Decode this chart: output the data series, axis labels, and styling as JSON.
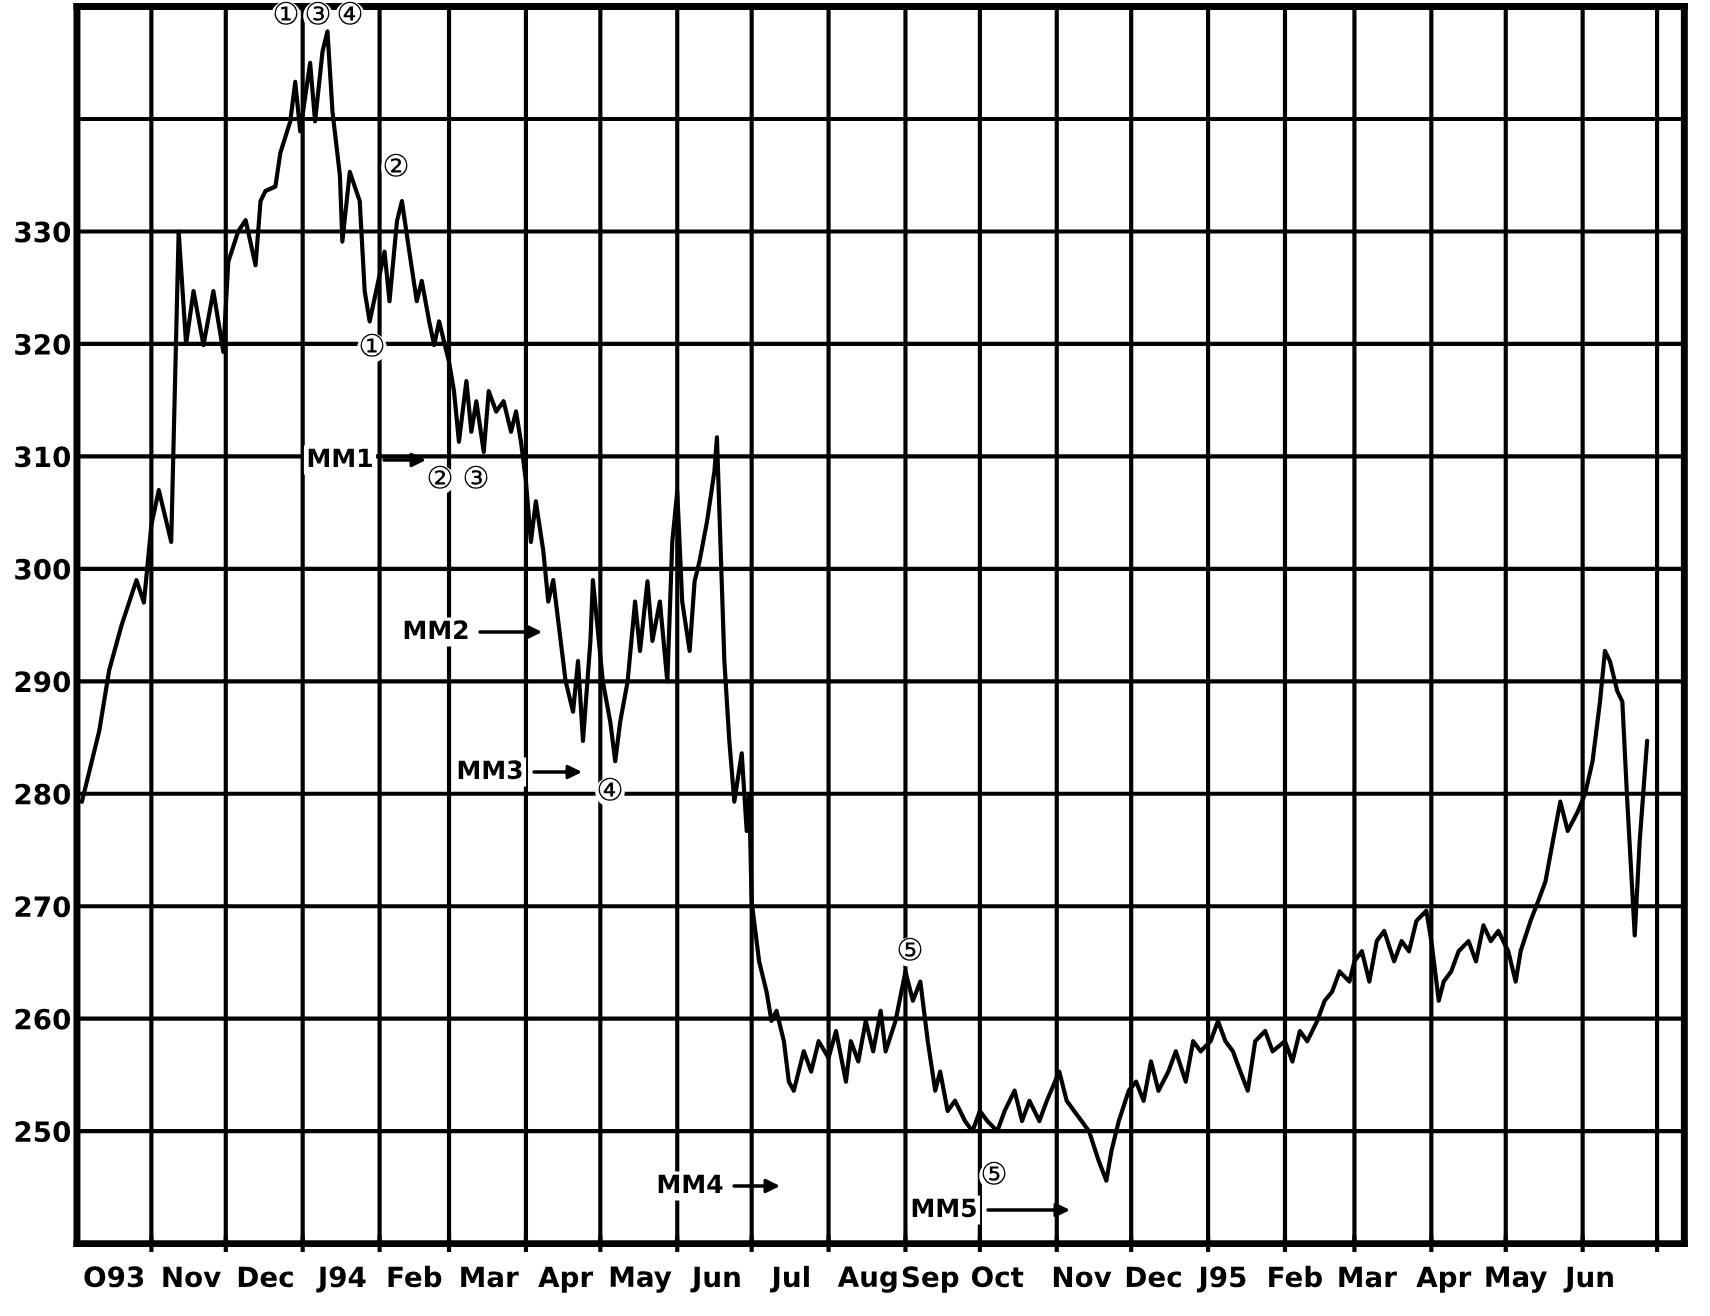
{
  "chart_data": {
    "type": "line",
    "ylim": [
      240,
      350
    ],
    "yticks": [
      250,
      260,
      270,
      280,
      290,
      300,
      310,
      320,
      330,
      {
        "value": 340,
        "label": null
      }
    ],
    "xlim": [
      "1993-10-02",
      "1995-07-12"
    ],
    "xticks": [
      {
        "value": "1993-10-17",
        "label": "O93"
      },
      {
        "value": "1993-11-01",
        "label": null
      },
      {
        "value": "1993-11-17",
        "label": "Nov"
      },
      {
        "value": "1993-12-01",
        "label": null
      },
      {
        "value": "1993-12-17",
        "label": "Dec"
      },
      {
        "value": "1994-01-01",
        "label": null
      },
      {
        "value": "1994-01-17",
        "label": "J94"
      },
      {
        "value": "1994-02-01",
        "label": null
      },
      {
        "value": "1994-02-15",
        "label": "Feb"
      },
      {
        "value": "1994-03-01",
        "label": null
      },
      {
        "value": "1994-03-17",
        "label": "Mar"
      },
      {
        "value": "1994-04-01",
        "label": null
      },
      {
        "value": "1994-04-17",
        "label": "Apr"
      },
      {
        "value": "1994-05-01",
        "label": null
      },
      {
        "value": "1994-05-17",
        "label": "May"
      },
      {
        "value": "1994-06-01",
        "label": null
      },
      {
        "value": "1994-06-17",
        "label": "Jun"
      },
      {
        "value": "1994-07-01",
        "label": null
      },
      {
        "value": "1994-07-17",
        "label": "Jul"
      },
      {
        "value": "1994-08-01",
        "label": null
      },
      {
        "value": "1994-08-17",
        "label": "Aug"
      },
      {
        "value": "1994-09-01",
        "label": null
      },
      {
        "value": "1994-09-11",
        "label": "Sep"
      },
      {
        "value": "1994-10-01",
        "label": null
      },
      {
        "value": "1994-10-08",
        "label": "Oct"
      },
      {
        "value": "1994-11-01",
        "label": null
      },
      {
        "value": "1994-11-11",
        "label": "Nov"
      },
      {
        "value": "1994-12-01",
        "label": null
      },
      {
        "value": "1994-12-10",
        "label": "Dec"
      },
      {
        "value": "1995-01-01",
        "label": null
      },
      {
        "value": "1995-01-07",
        "label": "J95"
      },
      {
        "value": "1995-02-01",
        "label": null
      },
      {
        "value": "1995-02-05",
        "label": "Feb"
      },
      {
        "value": "1995-03-01",
        "label": null
      },
      {
        "value": "1995-03-06",
        "label": "Mar"
      },
      {
        "value": "1995-04-01",
        "label": null
      },
      {
        "value": "1995-04-06",
        "label": "Apr"
      },
      {
        "value": "1995-05-01",
        "label": null
      },
      {
        "value": "1995-05-05",
        "label": "May"
      },
      {
        "value": "1995-06-01",
        "label": null
      },
      {
        "value": "1995-06-04",
        "label": "Jun"
      },
      {
        "value": "1995-07-01",
        "label": null
      }
    ],
    "grid": true,
    "x": [
      "1993-10-04",
      "1993-10-11",
      "1993-10-15",
      "1993-10-20",
      "1993-10-26",
      "1993-10-29",
      "1993-11-01",
      "1993-11-04",
      "1993-11-09",
      "1993-11-12",
      "1993-11-15",
      "1993-11-18",
      "1993-11-22",
      "1993-11-26",
      "1993-11-30",
      "1993-12-02",
      "1993-12-06",
      "1993-12-09",
      "1993-12-13",
      "1993-12-15",
      "1993-12-17",
      "1993-12-21",
      "1993-12-23",
      "1993-12-27",
      "1993-12-29",
      "1993-12-31",
      "1994-01-04",
      "1994-01-06",
      "1994-01-09",
      "1994-01-11",
      "1994-01-13",
      "1994-01-16",
      "1994-01-17",
      "1994-01-20",
      "1994-01-24",
      "1994-01-26",
      "1994-01-28",
      "1994-02-03",
      "1994-02-05",
      "1994-02-08",
      "1994-02-10",
      "1994-02-13",
      "1994-02-16",
      "1994-02-18",
      "1994-02-21",
      "1994-02-23",
      "1994-02-25",
      "1994-03-01",
      "1994-03-03",
      "1994-03-05",
      "1994-03-08",
      "1994-03-10",
      "1994-03-12",
      "1994-03-15",
      "1994-03-17",
      "1994-03-20",
      "1994-03-23",
      "1994-03-26",
      "1994-03-28",
      "1994-03-30",
      "1994-04-01",
      "1994-04-03",
      "1994-04-05",
      "1994-04-08",
      "1994-04-10",
      "1994-04-12",
      "1994-04-15",
      "1994-04-17",
      "1994-04-20",
      "1994-04-22",
      "1994-04-24",
      "1994-04-27",
      "1994-04-28",
      "1994-05-02",
      "1994-05-05",
      "1994-05-07",
      "1994-05-09",
      "1994-05-12",
      "1994-05-15",
      "1994-05-17",
      "1994-05-20",
      "1994-05-22",
      "1994-05-25",
      "1994-05-28",
      "1994-05-30",
      "1994-06-01",
      "1994-06-03",
      "1994-06-06",
      "1994-06-08",
      "1994-06-10",
      "1994-06-13",
      "1994-06-16",
      "1994-06-17",
      "1994-06-20",
      "1994-06-22",
      "1994-06-24",
      "1994-06-27",
      "1994-06-29",
      "1994-06-30",
      "1994-07-01",
      "1994-07-04",
      "1994-07-07",
      "1994-07-09",
      "1994-07-11",
      "1994-07-14",
      "1994-07-16",
      "1994-07-18",
      "1994-07-22",
      "1994-07-25",
      "1994-07-28",
      "1994-08-01",
      "1994-08-04",
      "1994-08-08",
      "1994-08-10",
      "1994-08-13",
      "1994-08-16",
      "1994-08-19",
      "1994-08-22",
      "1994-08-24",
      "1994-08-28",
      "1994-09-01",
      "1994-09-04",
      "1994-09-07",
      "1994-09-10",
      "1994-09-13",
      "1994-09-15",
      "1994-09-18",
      "1994-09-21",
      "1994-09-25",
      "1994-09-28",
      "1994-10-01",
      "1994-10-04",
      "1994-10-08",
      "1994-10-11",
      "1994-10-15",
      "1994-10-18",
      "1994-10-21",
      "1994-10-25",
      "1994-10-28",
      "1994-11-02",
      "1994-11-05",
      "1994-11-08",
      "1994-11-11",
      "1994-11-14",
      "1994-11-18",
      "1994-11-21",
      "1994-11-23",
      "1994-11-26",
      "1994-11-30",
      "1994-12-03",
      "1994-12-06",
      "1994-12-09",
      "1994-12-12",
      "1994-12-16",
      "1994-12-19",
      "1994-12-23",
      "1994-12-26",
      "1994-12-29",
      "1995-01-02",
      "1995-01-05",
      "1995-01-08",
      "1995-01-11",
      "1995-01-14",
      "1995-01-17",
      "1995-01-20",
      "1995-01-24",
      "1995-01-27",
      "1995-02-01",
      "1995-02-04",
      "1995-02-07",
      "1995-02-10",
      "1995-02-14",
      "1995-02-17",
      "1995-02-20",
      "1995-02-23",
      "1995-02-27",
      "1995-03-01",
      "1995-03-04",
      "1995-03-07",
      "1995-03-10",
      "1995-03-13",
      "1995-03-17",
      "1995-03-20",
      "1995-03-23",
      "1995-03-26",
      "1995-03-30",
      "1995-04-01",
      "1995-04-04",
      "1995-04-06",
      "1995-04-09",
      "1995-04-12",
      "1995-04-16",
      "1995-04-19",
      "1995-04-22",
      "1995-04-25",
      "1995-04-28",
      "1995-05-02",
      "1995-05-05",
      "1995-05-07",
      "1995-05-11",
      "1995-05-14",
      "1995-05-17",
      "1995-05-20",
      "1995-05-23",
      "1995-05-26",
      "1995-05-30",
      "1995-06-02",
      "1995-06-05",
      "1995-06-08",
      "1995-06-10",
      "1995-06-12",
      "1995-06-15",
      "1995-06-17",
      "1995-06-19",
      "1995-06-22",
      "1995-06-24",
      "1995-06-27"
    ],
    "series": [
      {
        "color": "#000000",
        "values": [
          279.3,
          285.6,
          291,
          295,
          299,
          297,
          303.9,
          307,
          302.4,
          330,
          320,
          324.7,
          319.9,
          324.7,
          319.3,
          327.3,
          330,
          331,
          327,
          332.7,
          333.6,
          334,
          337,
          339.8,
          343.3,
          338.9,
          345,
          339.8,
          346,
          347.8,
          340.7,
          335,
          329.1,
          335.3,
          332.7,
          324.7,
          322,
          328.2,
          323.8,
          330.9,
          332.7,
          328.2,
          323.8,
          325.6,
          322,
          319.9,
          322,
          318.4,
          315.8,
          311.3,
          316.7,
          312.2,
          314.9,
          310.4,
          315.8,
          314,
          314.9,
          312.2,
          314,
          311.3,
          307.8,
          302.4,
          306,
          301.6,
          297.1,
          299,
          293.6,
          290,
          287.3,
          291.8,
          284.7,
          293.6,
          299,
          290,
          286.4,
          282.9,
          286.4,
          290,
          297.1,
          292.7,
          298.9,
          293.6,
          297.1,
          290,
          302.4,
          306.9,
          297.1,
          292.7,
          298.9,
          300.7,
          304.2,
          308.7,
          311.7,
          291.8,
          284.7,
          279.3,
          283.6,
          276.7,
          280,
          270.4,
          265.1,
          262.4,
          259.8,
          260.7,
          258,
          254.4,
          253.6,
          257.1,
          255.3,
          258,
          256.5,
          258.9,
          254.4,
          258,
          256.2,
          259.8,
          257.1,
          260.7,
          257.1,
          259.8,
          264.2,
          261.6,
          263.3,
          258,
          253.6,
          255.3,
          251.8,
          252.7,
          250.9,
          250,
          251.8,
          250.9,
          250,
          251.8,
          253.6,
          250.9,
          252.7,
          250.9,
          252.7,
          255.3,
          252.7,
          251.8,
          250.9,
          250,
          247.3,
          245.6,
          248.2,
          250.9,
          253.6,
          254.4,
          252.7,
          256.2,
          253.6,
          255.3,
          257.1,
          254.4,
          258,
          257.1,
          258,
          259.8,
          258,
          257.1,
          255.3,
          253.6,
          258,
          258.9,
          257.1,
          258,
          256.2,
          258.9,
          258,
          259.8,
          261.6,
          262.4,
          264.2,
          263.3,
          265.1,
          266,
          263.3,
          266.9,
          267.8,
          265.1,
          266.9,
          266,
          268.7,
          269.6,
          266.9,
          261.6,
          263.3,
          264.2,
          266,
          266.9,
          265.1,
          268.3,
          266.9,
          267.8,
          266,
          263.3,
          266,
          268.7,
          270.4,
          272.2,
          275.8,
          279.3,
          276.7,
          278.4,
          280,
          282.9,
          288.2,
          292.7,
          291.8,
          289.1,
          288.2,
          279.3,
          267.4,
          275.8,
          284.7
        ]
      }
    ],
    "annotations": [
      "①",
      "③",
      "④",
      "②",
      "①",
      "②",
      "③",
      "④",
      "⑤",
      "⑤",
      "MM1",
      "MM2",
      "MM3",
      "MM4",
      "MM5"
    ]
  }
}
